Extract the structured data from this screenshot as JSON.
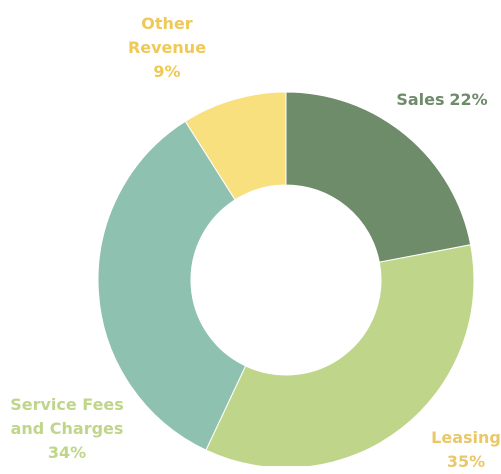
{
  "chart_data": {
    "type": "donut",
    "categories": [
      "Sales",
      "Leasing",
      "Service Fees and Charges",
      "Other Revenue"
    ],
    "values": [
      22,
      35,
      34,
      9
    ],
    "value_labels": [
      "22%",
      "35%",
      "34%",
      "9%"
    ],
    "colors": [
      "#6e8b6a",
      "#bfd68a",
      "#8fc1b0",
      "#f9e07f"
    ],
    "label_colors": [
      "#6e8b6a",
      "#e9c86a",
      "#bfd68a",
      "#efc956"
    ]
  }
}
